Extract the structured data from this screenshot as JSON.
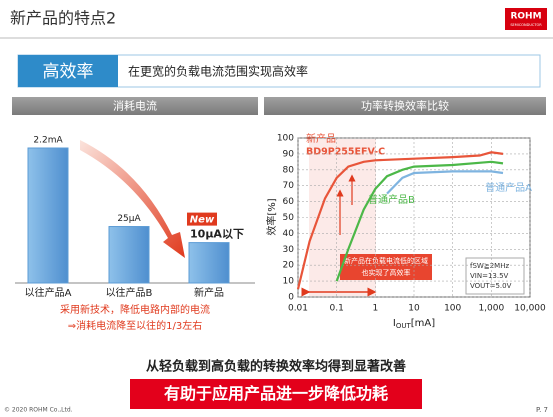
{
  "header": {
    "title": "新产品的特点2",
    "logo": "ROHM",
    "logo_sub": "SEMICONDUCTOR"
  },
  "banner": {
    "tag": "高效率",
    "text": "在更宽的负载电流范围实现高效率"
  },
  "chart_data": [
    {
      "type": "bar",
      "title": "消耗电流",
      "categories": [
        "以往产品A",
        "以往产品B",
        "新产品"
      ],
      "values": [
        2200,
        25,
        10
      ],
      "value_labels": [
        "2.2mA",
        "25μA",
        "10μA以下"
      ],
      "badge": "New",
      "color": "#5b9bd5",
      "log_scale": true,
      "notes": [
        "采用新技术，降低电路内部的电流",
        "⇒消耗电流降至以往的1/3左右"
      ]
    },
    {
      "type": "line",
      "title": "功率转换效率比较",
      "ylabel": "效率[%]",
      "xlabel": {
        "main": "I",
        "sub": "OUT",
        "unit": "[mA]"
      },
      "xlim": [
        0.01,
        10000
      ],
      "xticks": [
        0.01,
        0.1,
        1,
        10,
        100,
        {
          "value": 1000,
          "label": "1,000"
        },
        {
          "value": 10000,
          "label": "10,000"
        }
      ],
      "ylim": [
        0,
        100
      ],
      "yticks": [
        0,
        10,
        20,
        30,
        40,
        50,
        60,
        70,
        80,
        90,
        100
      ],
      "log_x": true,
      "grid": true,
      "part_number": "BD9P255EFV-C",
      "annotation": [
        "新产品在负载电流低的区域",
        "也实现了高效率"
      ],
      "conditions": [
        "fSW≧2MHz",
        "VIN=13.5V",
        "VOUT=5.0V"
      ],
      "series": [
        {
          "name": "新产品",
          "color": "#e8553a",
          "x": [
            0.01,
            0.02,
            0.05,
            0.1,
            0.2,
            0.5,
            1,
            10,
            100,
            500,
            1000,
            2000
          ],
          "values": [
            5,
            35,
            62,
            75,
            82,
            85,
            86,
            87,
            88,
            89,
            91,
            90
          ]
        },
        {
          "name": "普通产品B",
          "color": "#4cb848",
          "x": [
            0.1,
            0.2,
            0.5,
            1,
            2,
            5,
            10,
            100,
            1000,
            2000
          ],
          "values": [
            10,
            30,
            55,
            68,
            76,
            80,
            82,
            83,
            85,
            84
          ]
        },
        {
          "name": "普通产品A",
          "color": "#7fb4e0",
          "x": [
            2,
            5,
            10,
            100,
            1000,
            2000
          ],
          "values": [
            65,
            75,
            78,
            79,
            79,
            78
          ]
        }
      ]
    }
  ],
  "summary": "从轻负载到高负载的转换效率均得到显著改善",
  "highlight": "有助于应用产品进一步降低功耗",
  "footer": {
    "copyright": "© 2020 ROHM Co.,Ltd.",
    "page": "P. 7"
  }
}
